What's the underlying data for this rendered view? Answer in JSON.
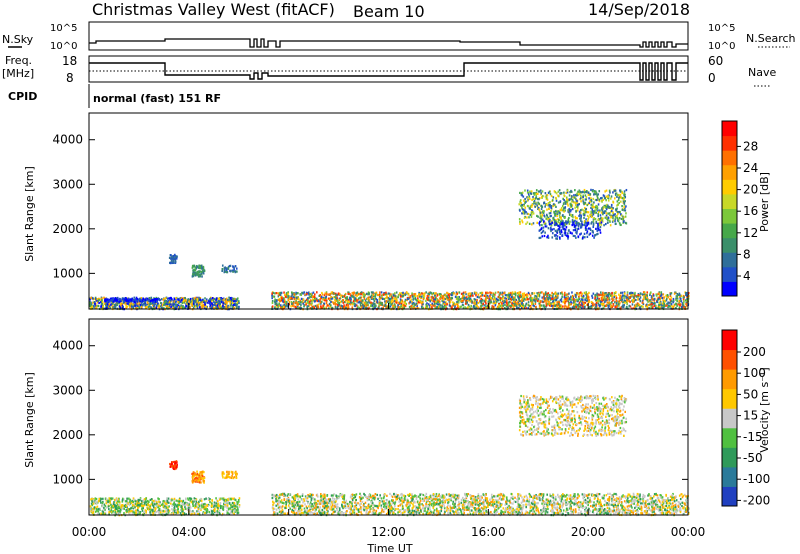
{
  "header": {
    "title": "Christmas Valley West (fitACF)",
    "beam": "Beam 10",
    "date": "14/Sep/2018"
  },
  "top_panels": {
    "nsky_label": "N.Sky",
    "nsearch_label": "N.Search",
    "nsky_ticks": [
      "10^5",
      "10^0"
    ],
    "nsearch_ticks": [
      "10^5",
      "10^0"
    ],
    "freq_label_1": "Freq.",
    "freq_label_2": "[MHz]",
    "freq_ticks": [
      "18",
      "8"
    ],
    "nave_label": "Nave",
    "nave_ticks": [
      "60",
      "0"
    ],
    "cpid_label": "CPID",
    "cpid_text": "normal (fast) 151 RF"
  },
  "chart_data": [
    {
      "type": "heatmap",
      "name": "power",
      "ylabel": "Slant Range [km]",
      "xlabel": "",
      "y_ticks": [
        1000,
        2000,
        3000,
        4000
      ],
      "ylim": [
        200,
        4600
      ],
      "colorbar_label": "Power [dB]",
      "colorbar_ticks": [
        4,
        8,
        12,
        16,
        20,
        24,
        28
      ],
      "colorbar_colors": [
        "#0000ff",
        "#2050c8",
        "#2f6f9a",
        "#3a8f6a",
        "#46a84a",
        "#7cc83a",
        "#c8d828",
        "#ffcc00",
        "#ffa000",
        "#ff7000",
        "#ff3000",
        "#ff0000"
      ]
    },
    {
      "type": "heatmap",
      "name": "velocity",
      "ylabel": "Slant Range [km]",
      "xlabel": "Time UT",
      "x_ticks": [
        "00:00",
        "04:00",
        "08:00",
        "12:00",
        "16:00",
        "20:00",
        "00:00"
      ],
      "y_ticks": [
        1000,
        2000,
        3000,
        4000
      ],
      "ylim": [
        200,
        4600
      ],
      "colorbar_label": "Velocity [m s⁻¹]",
      "colorbar_ticks": [
        "200",
        "100",
        "50",
        "15",
        "-15",
        "-50",
        "-100",
        "-200"
      ],
      "colorbar_colors": [
        "#2040c0",
        "#2a7a9a",
        "#2f9a5a",
        "#50c040",
        "#c8c8c8",
        "#ffc800",
        "#ff9a00",
        "#ff5000",
        "#ff0000"
      ]
    }
  ]
}
